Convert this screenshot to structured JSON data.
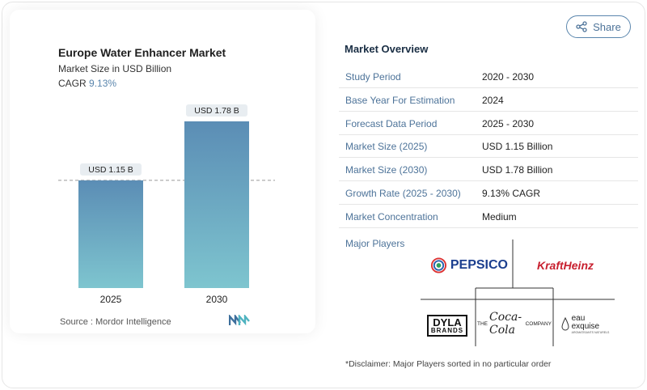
{
  "chart_card": {
    "title": "Europe Water Enhancer Market",
    "subtitle": "Market Size in USD Billion",
    "cagr_label": "CAGR",
    "cagr_value": "9.13%",
    "source": "Source :  Mordor Intelligence"
  },
  "chart_data": {
    "type": "bar",
    "categories": [
      "2025",
      "2030"
    ],
    "values": [
      1.15,
      1.78
    ],
    "data_labels": [
      "USD 1.15 B",
      "USD 1.78 B"
    ],
    "title": "Europe Water Enhancer Market",
    "subtitle": "Market Size in USD Billion",
    "xlabel": "",
    "ylabel": "",
    "ylim": [
      0,
      1.78
    ],
    "grid": false,
    "reference_line": "dashed line at 2025 value",
    "colors": {
      "bar_top": "#5b8db5",
      "bar_bottom": "#7ec5cf",
      "label_bg": "#e8edf1"
    }
  },
  "share_button": {
    "label": "Share",
    "icon": "share-icon"
  },
  "overview": {
    "title": "Market Overview",
    "rows": [
      {
        "key": "Study Period",
        "value": "2020 - 2030"
      },
      {
        "key": "Base Year For Estimation",
        "value": "2024"
      },
      {
        "key": "Forecast Data Period",
        "value": "2025 - 2030"
      },
      {
        "key": "Market Size (2025)",
        "value": "USD 1.15 Billion"
      },
      {
        "key": "Market Size (2030)",
        "value": "USD 1.78 Billion"
      },
      {
        "key": "Growth Rate (2025 - 2030)",
        "value": "9.13% CAGR"
      },
      {
        "key": "Market Concentration",
        "value": "Medium"
      }
    ],
    "players_label": "Major Players",
    "players": {
      "pepsico": "PEPSICO",
      "kraftheinz": "KraftHeinz",
      "dyla_1": "DYLA",
      "dyla_2": "BRANDS",
      "cocacola_pre": "THE",
      "cocacola_script": "Coca-Cola",
      "cocacola_post": "COMPANY",
      "eau_1": "eau",
      "eau_2": "exquise",
      "eau_3": "AROMATISANTS NATURELS"
    },
    "disclaimer": "*Disclaimer: Major Players sorted in no particular order"
  },
  "colors": {
    "accent": "#4d7399",
    "title": "#1a2e44"
  }
}
